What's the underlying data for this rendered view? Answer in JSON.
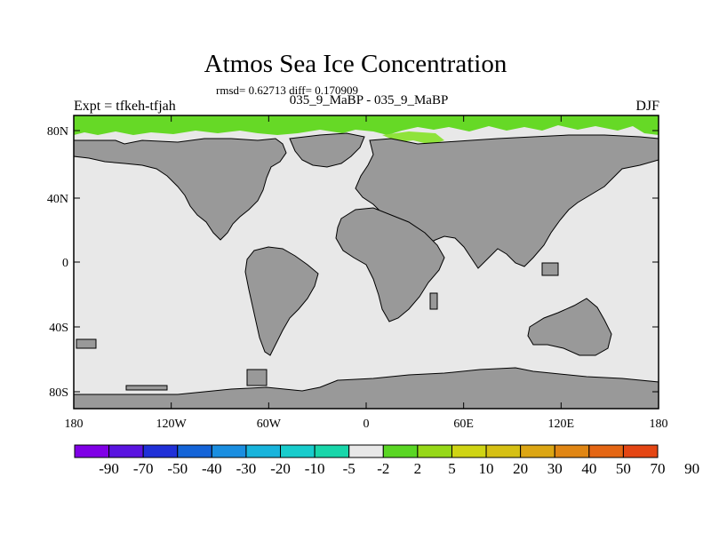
{
  "title": "Atmos Sea Ice Concentration",
  "stats": "rmsd= 0.62713 diff= 0.170909",
  "subtitle": "035_9_MaBP - 035_9_MaBP",
  "experiment": "Expt = tfkeh-tfjah",
  "season": "DJF",
  "map": {
    "ocean_color": "#e8e8e8",
    "land_color": "#999999",
    "ice_color": "#66d926",
    "ice_color_light": "#8fe33a",
    "x_ticks": [
      "180",
      "120W",
      "60W",
      "0",
      "60E",
      "120E",
      "180"
    ],
    "y_ticks": [
      "80N",
      "40N",
      "0",
      "40S",
      "80S"
    ]
  },
  "colorbar": {
    "colors": [
      "#8000e6",
      "#5a14e0",
      "#2030d8",
      "#1464d8",
      "#1a8ee0",
      "#18b4dc",
      "#18cccc",
      "#18d6aa",
      "#e8e8e8",
      "#5ad624",
      "#96d818",
      "#cfd414",
      "#d6c014",
      "#dca614",
      "#e08614",
      "#e46614",
      "#e44614"
    ],
    "labels": [
      "-90",
      "-70",
      "-50",
      "-40",
      "-30",
      "-20",
      "-10",
      "-5",
      "-2",
      "2",
      "5",
      "10",
      "20",
      "30",
      "40",
      "50",
      "70",
      "90"
    ]
  }
}
